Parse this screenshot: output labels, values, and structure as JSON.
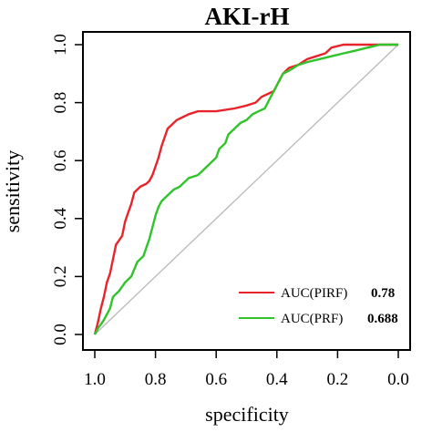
{
  "chart_data": {
    "type": "line",
    "title": "AKI-rH",
    "xlabel": "specificity",
    "ylabel": "sensitivity",
    "xlim": [
      1.0,
      0.0
    ],
    "ylim": [
      0.0,
      1.0
    ],
    "x_ticks": [
      "1.0",
      "0.8",
      "0.6",
      "0.4",
      "0.2",
      "0.0"
    ],
    "y_ticks": [
      "0.0",
      "0.2",
      "0.4",
      "0.6",
      "0.8",
      "1.0"
    ],
    "grid": false,
    "legend_position": "bottom-right",
    "reference_line": {
      "from": [
        1.0,
        0.0
      ],
      "to": [
        0.0,
        1.0
      ],
      "color": "#b8b8b8"
    },
    "series": [
      {
        "name": "AUC(PIRF)",
        "auc": "0.78",
        "color": "#e8242a",
        "points": [
          [
            1.0,
            0.0
          ],
          [
            0.99,
            0.04
          ],
          [
            0.98,
            0.09
          ],
          [
            0.97,
            0.13
          ],
          [
            0.96,
            0.18
          ],
          [
            0.95,
            0.21
          ],
          [
            0.94,
            0.26
          ],
          [
            0.93,
            0.31
          ],
          [
            0.91,
            0.34
          ],
          [
            0.9,
            0.39
          ],
          [
            0.89,
            0.42
          ],
          [
            0.88,
            0.45
          ],
          [
            0.87,
            0.49
          ],
          [
            0.85,
            0.51
          ],
          [
            0.83,
            0.52
          ],
          [
            0.82,
            0.53
          ],
          [
            0.81,
            0.55
          ],
          [
            0.8,
            0.58
          ],
          [
            0.79,
            0.61
          ],
          [
            0.78,
            0.65
          ],
          [
            0.77,
            0.68
          ],
          [
            0.76,
            0.71
          ],
          [
            0.75,
            0.72
          ],
          [
            0.73,
            0.74
          ],
          [
            0.71,
            0.75
          ],
          [
            0.69,
            0.76
          ],
          [
            0.66,
            0.77
          ],
          [
            0.6,
            0.77
          ],
          [
            0.54,
            0.78
          ],
          [
            0.5,
            0.79
          ],
          [
            0.47,
            0.8
          ],
          [
            0.45,
            0.82
          ],
          [
            0.43,
            0.83
          ],
          [
            0.41,
            0.84
          ],
          [
            0.4,
            0.86
          ],
          [
            0.39,
            0.88
          ],
          [
            0.38,
            0.9
          ],
          [
            0.36,
            0.92
          ],
          [
            0.33,
            0.93
          ],
          [
            0.3,
            0.95
          ],
          [
            0.27,
            0.96
          ],
          [
            0.24,
            0.97
          ],
          [
            0.22,
            0.99
          ],
          [
            0.18,
            1.0
          ],
          [
            0.0,
            1.0
          ]
        ]
      },
      {
        "name": "AUC(PRF)",
        "auc": "0.688",
        "color": "#2fc42a",
        "points": [
          [
            1.0,
            0.0
          ],
          [
            0.99,
            0.02
          ],
          [
            0.97,
            0.05
          ],
          [
            0.95,
            0.09
          ],
          [
            0.94,
            0.13
          ],
          [
            0.92,
            0.15
          ],
          [
            0.9,
            0.18
          ],
          [
            0.88,
            0.2
          ],
          [
            0.86,
            0.25
          ],
          [
            0.84,
            0.27
          ],
          [
            0.83,
            0.3
          ],
          [
            0.82,
            0.33
          ],
          [
            0.81,
            0.37
          ],
          [
            0.8,
            0.41
          ],
          [
            0.79,
            0.44
          ],
          [
            0.78,
            0.46
          ],
          [
            0.76,
            0.48
          ],
          [
            0.74,
            0.5
          ],
          [
            0.72,
            0.51
          ],
          [
            0.69,
            0.54
          ],
          [
            0.66,
            0.55
          ],
          [
            0.64,
            0.57
          ],
          [
            0.62,
            0.59
          ],
          [
            0.6,
            0.61
          ],
          [
            0.59,
            0.64
          ],
          [
            0.57,
            0.66
          ],
          [
            0.56,
            0.69
          ],
          [
            0.54,
            0.71
          ],
          [
            0.52,
            0.73
          ],
          [
            0.5,
            0.74
          ],
          [
            0.48,
            0.76
          ],
          [
            0.46,
            0.77
          ],
          [
            0.44,
            0.78
          ],
          [
            0.43,
            0.8
          ],
          [
            0.42,
            0.82
          ],
          [
            0.41,
            0.84
          ],
          [
            0.4,
            0.86
          ],
          [
            0.39,
            0.88
          ],
          [
            0.38,
            0.9
          ],
          [
            0.36,
            0.91
          ],
          [
            0.33,
            0.93
          ],
          [
            0.3,
            0.94
          ],
          [
            0.26,
            0.95
          ],
          [
            0.22,
            0.96
          ],
          [
            0.18,
            0.97
          ],
          [
            0.14,
            0.98
          ],
          [
            0.1,
            0.99
          ],
          [
            0.06,
            1.0
          ],
          [
            0.0,
            1.0
          ]
        ]
      }
    ]
  }
}
